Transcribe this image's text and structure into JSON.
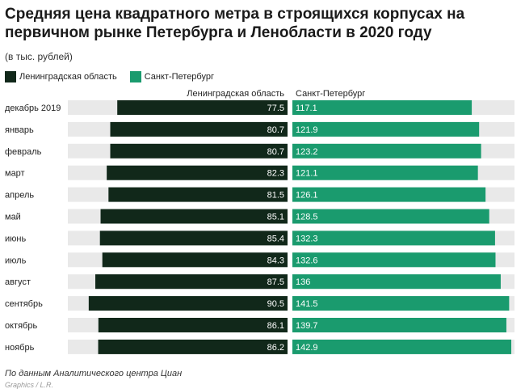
{
  "title": "Средняя цена квадратного метра в строящихся корпусах на первичном рынке Петербурга и Ленобласти в 2020 году",
  "subtitle": "(в тыс. рублей)",
  "legend": [
    {
      "label": "Ленинградская область",
      "color": "#11281a"
    },
    {
      "label": "Санкт-Петербург",
      "color": "#1a9b6e"
    }
  ],
  "footer": {
    "source": "По данным Аналитического центра Циан",
    "clipped": "Graphics / L.R."
  },
  "chart_data": {
    "type": "bar",
    "categories": [
      "декабрь 2019",
      "январь",
      "февраль",
      "март",
      "апрель",
      "май",
      "июнь",
      "июль",
      "август",
      "сентябрь",
      "октябрь",
      "ноябрь"
    ],
    "series": [
      {
        "name": "Ленинградская область",
        "values": [
          77.5,
          80.7,
          80.7,
          82.3,
          81.5,
          85.1,
          85.4,
          84.3,
          87.5,
          90.5,
          86.1,
          86.2
        ],
        "color": "#11281a"
      },
      {
        "name": "Санкт-Петербург",
        "values": [
          117.1,
          121.9,
          123.2,
          121.1,
          126.1,
          128.5,
          132.3,
          132.6,
          136,
          141.5,
          139.7,
          142.9
        ],
        "color": "#1a9b6e"
      }
    ],
    "value_labels": {
      "Ленинградская область": [
        "77.5",
        "80.7",
        "80.7",
        "82.3",
        "81.5",
        "85.1",
        "85.4",
        "84.3",
        "87.5",
        "90.5",
        "86.1",
        "86.2"
      ],
      "Санкт-Петербург": [
        "117.1",
        "121.9",
        "123.2",
        "121.1",
        "126.1",
        "128.5",
        "132.3",
        "132.6",
        "136",
        "141.5",
        "139.7",
        "142.9"
      ]
    },
    "column_headers": [
      "Ленинградская область",
      "Санкт-Петербург"
    ],
    "background_track_color": "#e9e9e9",
    "xlim_left": [
      0,
      100
    ],
    "xlim_right": [
      0,
      145
    ],
    "orientation": "horizontal-diverging"
  }
}
